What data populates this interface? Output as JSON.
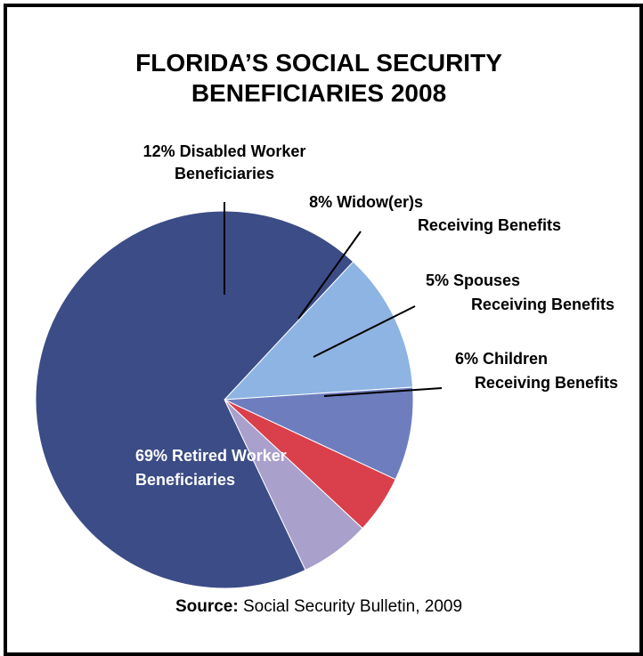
{
  "chart_data": {
    "type": "pie",
    "title_lines": [
      "FLORIDA’S SOCIAL SECURITY",
      "BENEFICIARIES 2008"
    ],
    "slices": [
      {
        "label_lines": [
          "12% Disabled Worker",
          "Beneficiaries"
        ],
        "value": 12,
        "color": "#8DB4E2"
      },
      {
        "label_lines": [
          "8% Widow(er)s",
          "Receiving Benefits"
        ],
        "value": 8,
        "color": "#6E7DBE"
      },
      {
        "label_lines": [
          "5% Spouses",
          "Receiving Benefits"
        ],
        "value": 5,
        "color": "#D9404B"
      },
      {
        "label_lines": [
          "6% Children",
          "Receiving Benefits"
        ],
        "value": 6,
        "color": "#A9A0CC"
      },
      {
        "label_lines": [
          "69% Retired Worker",
          "Beneficiaries"
        ],
        "value": 69,
        "color": "#3C4C86"
      }
    ]
  },
  "source": {
    "label": "Source:",
    "text": "Social Security Bulletin, 2009"
  }
}
